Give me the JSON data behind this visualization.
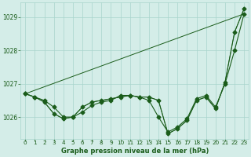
{
  "title": "Graphe pression niveau de la mer (hPa)",
  "xlabel_hours": [
    0,
    1,
    2,
    3,
    4,
    5,
    6,
    7,
    8,
    9,
    10,
    11,
    12,
    13,
    14,
    15,
    16,
    17,
    18,
    19,
    20,
    21,
    22,
    23
  ],
  "ylim": [
    1025.35,
    1029.45
  ],
  "yticks": [
    1026,
    1027,
    1028,
    1029
  ],
  "background_color": "#d4ede8",
  "grid_color": "#a8d4cc",
  "line_color": "#1a5c1a",
  "series1": [
    1026.7,
    1026.6,
    1026.5,
    1026.3,
    1026.0,
    1026.0,
    1026.15,
    1026.35,
    1026.45,
    1026.5,
    1026.65,
    1026.65,
    1026.6,
    1026.5,
    1026.0,
    1025.55,
    1025.7,
    1025.95,
    1026.55,
    1026.65,
    1026.3,
    1027.0,
    1028.0,
    1029.1
  ],
  "series2": [
    1026.7,
    1026.6,
    1026.45,
    1026.1,
    1025.95,
    1026.0,
    1026.3,
    1026.45,
    1026.5,
    1026.55,
    1026.6,
    1026.65,
    1026.6,
    1026.6,
    1026.5,
    1025.5,
    1025.65,
    1025.9,
    1026.5,
    1026.6,
    1026.25,
    1027.05,
    1028.55,
    1029.25
  ],
  "marker_style": "D",
  "marker_size": 2.5
}
